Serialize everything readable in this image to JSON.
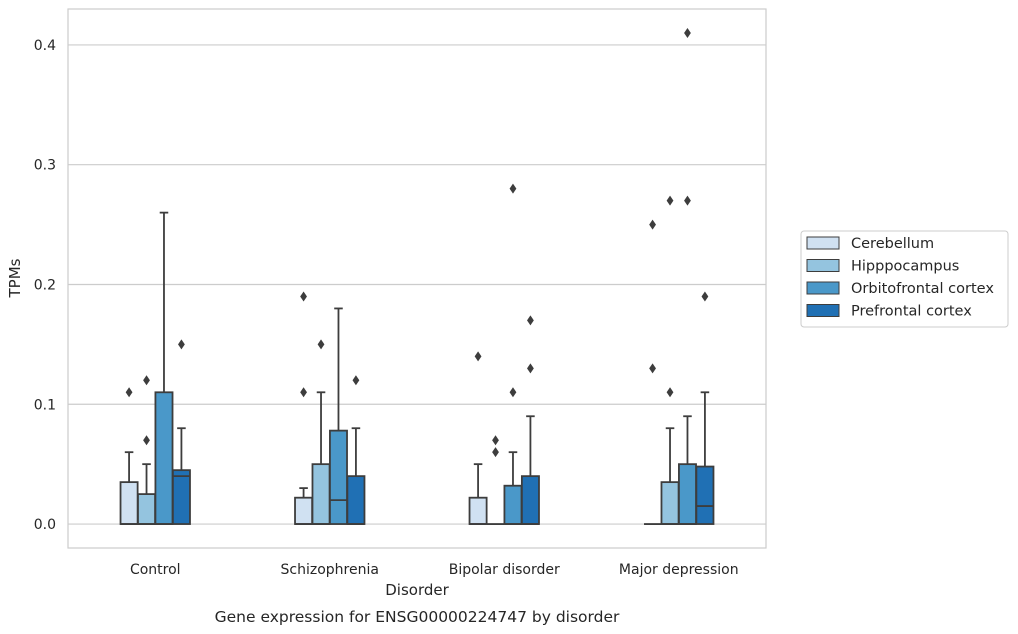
{
  "chart_data": {
    "type": "box",
    "title": "",
    "caption": "Gene expression for ENSG00000224747 by disorder",
    "xlabel": "Disorder",
    "ylabel": "TPMs",
    "ylim": [
      -0.02,
      0.43
    ],
    "yticks": [
      0.0,
      0.1,
      0.2,
      0.3,
      0.4
    ],
    "ytick_labels": [
      "0.0",
      "0.1",
      "0.2",
      "0.3",
      "0.4"
    ],
    "categories": [
      "Control",
      "Schizophrenia",
      "Bipolar disorder",
      "Major depression"
    ],
    "grid": "horizontal",
    "legend_position": "right",
    "series": [
      {
        "name": "Cerebellum",
        "color": "#d0e1f2",
        "boxes": [
          {
            "q1": 0.0,
            "median": 0.0,
            "q3": 0.035,
            "whislo": 0.0,
            "whishi": 0.06,
            "fliers": [
              0.11
            ]
          },
          {
            "q1": 0.0,
            "median": 0.0,
            "q3": 0.022,
            "whislo": 0.0,
            "whishi": 0.03,
            "fliers": [
              0.11,
              0.19
            ]
          },
          {
            "q1": 0.0,
            "median": 0.0,
            "q3": 0.022,
            "whislo": 0.0,
            "whishi": 0.05,
            "fliers": [
              0.14
            ]
          },
          {
            "q1": 0.0,
            "median": 0.0,
            "q3": 0.0,
            "whislo": 0.0,
            "whishi": 0.0,
            "fliers": [
              0.13,
              0.25
            ]
          }
        ]
      },
      {
        "name": "Hipppocampus",
        "color": "#94c4df",
        "boxes": [
          {
            "q1": 0.0,
            "median": 0.0,
            "q3": 0.025,
            "whislo": 0.0,
            "whishi": 0.05,
            "fliers": [
              0.07,
              0.12
            ]
          },
          {
            "q1": 0.0,
            "median": 0.0,
            "q3": 0.05,
            "whislo": 0.0,
            "whishi": 0.11,
            "fliers": [
              0.15
            ]
          },
          {
            "q1": 0.0,
            "median": 0.0,
            "q3": 0.0,
            "whislo": 0.0,
            "whishi": 0.0,
            "fliers": [
              0.06,
              0.07
            ]
          },
          {
            "q1": 0.0,
            "median": 0.0,
            "q3": 0.035,
            "whislo": 0.0,
            "whishi": 0.08,
            "fliers": [
              0.11,
              0.27
            ]
          }
        ]
      },
      {
        "name": "Orbitofrontal cortex",
        "color": "#4a98c9",
        "boxes": [
          {
            "q1": 0.0,
            "median": 0.0,
            "q3": 0.11,
            "whislo": 0.0,
            "whishi": 0.26,
            "fliers": []
          },
          {
            "q1": 0.0,
            "median": 0.02,
            "q3": 0.078,
            "whislo": 0.0,
            "whishi": 0.18,
            "fliers": []
          },
          {
            "q1": 0.0,
            "median": 0.0,
            "q3": 0.032,
            "whislo": 0.0,
            "whishi": 0.06,
            "fliers": [
              0.11,
              0.28
            ]
          },
          {
            "q1": 0.0,
            "median": 0.0,
            "q3": 0.05,
            "whislo": 0.0,
            "whishi": 0.09,
            "fliers": [
              0.27,
              0.41
            ]
          }
        ]
      },
      {
        "name": "Prefrontal cortex",
        "color": "#2070b4",
        "boxes": [
          {
            "q1": 0.0,
            "median": 0.04,
            "q3": 0.045,
            "whislo": 0.0,
            "whishi": 0.08,
            "fliers": [
              0.15
            ]
          },
          {
            "q1": 0.0,
            "median": 0.0,
            "q3": 0.04,
            "whislo": 0.0,
            "whishi": 0.08,
            "fliers": [
              0.12
            ]
          },
          {
            "q1": 0.0,
            "median": 0.0,
            "q3": 0.04,
            "whislo": 0.0,
            "whishi": 0.09,
            "fliers": [
              0.13,
              0.17
            ]
          },
          {
            "q1": 0.0,
            "median": 0.015,
            "q3": 0.048,
            "whislo": 0.0,
            "whishi": 0.11,
            "fliers": [
              0.19
            ]
          }
        ]
      }
    ]
  }
}
